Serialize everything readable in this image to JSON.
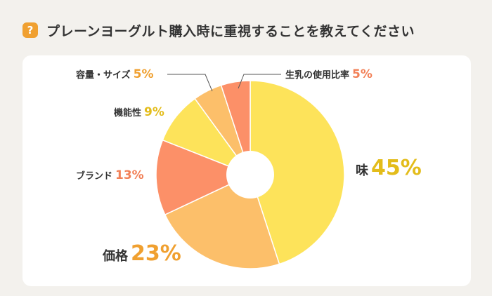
{
  "page": {
    "title": "プレーンヨーグルト購入時に重視することを教えてください",
    "badge": "?"
  },
  "chart_data": {
    "type": "pie",
    "style": "donut",
    "title": "プレーンヨーグルト購入時に重視することを教えてください",
    "slices": [
      {
        "name": "味",
        "value": 45,
        "label": "45%",
        "color": "#fde35a",
        "pct_color": "#e3bc1a"
      },
      {
        "name": "価格",
        "value": 23,
        "label": "23%",
        "color": "#fcbf6a",
        "pct_color": "#f0a030"
      },
      {
        "name": "ブランド",
        "value": 13,
        "label": "13%",
        "color": "#fc9068",
        "pct_color": "#f28057"
      },
      {
        "name": "機能性",
        "value": 9,
        "label": "9%",
        "color": "#fde35a",
        "pct_color": "#e3bc1a"
      },
      {
        "name": "容量・サイズ",
        "value": 5,
        "label": "5%",
        "color": "#fcbf6a",
        "pct_color": "#f0a030"
      },
      {
        "name": "生乳の使用比率",
        "value": 5,
        "label": "5%",
        "color": "#fc9068",
        "pct_color": "#f28057"
      }
    ]
  }
}
